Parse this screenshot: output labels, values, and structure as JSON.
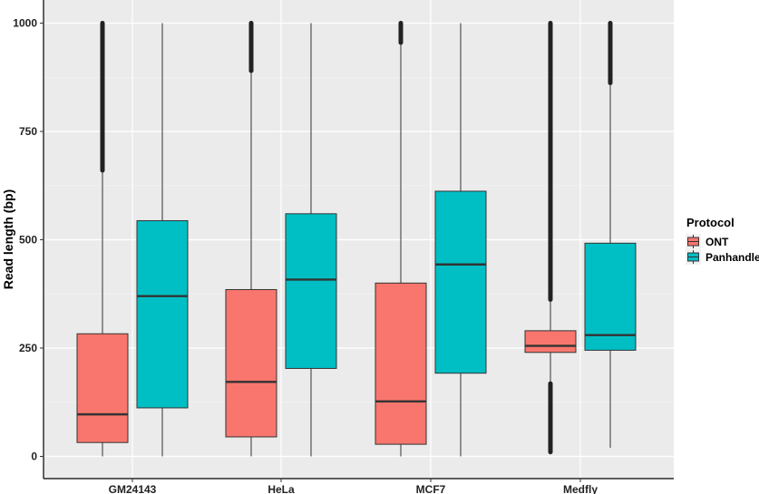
{
  "chart_data": {
    "type": "boxplot",
    "ylabel": "Read length (bp)",
    "xlabel": "",
    "ylim": [
      -40,
      1010
    ],
    "yticks": [
      0,
      250,
      500,
      750,
      1000
    ],
    "categories": [
      "GM24143",
      "HeLa",
      "MCF7",
      "Medfly"
    ],
    "grid": true,
    "legend": {
      "title": "Protocol",
      "position": "right"
    },
    "series": [
      {
        "name": "ONT",
        "color": "#F8766D",
        "boxes": [
          {
            "category": "GM24143",
            "whisker_low": 0,
            "q1": 32,
            "median": 97,
            "q3": 283,
            "whisker_high": 660,
            "outliers_range": [
              660,
              1000
            ]
          },
          {
            "category": "HeLa",
            "whisker_low": 0,
            "q1": 45,
            "median": 172,
            "q3": 385,
            "whisker_high": 890,
            "outliers_range": [
              890,
              1000
            ]
          },
          {
            "category": "MCF7",
            "whisker_low": 0,
            "q1": 28,
            "median": 127,
            "q3": 400,
            "whisker_high": 955,
            "outliers_range": [
              955,
              1000
            ]
          },
          {
            "category": "Medfly",
            "whisker_low": 168,
            "q1": 240,
            "median": 255,
            "q3": 290,
            "whisker_high": 362,
            "outliers_range": [
              362,
              1000
            ],
            "outliers_low_range": [
              10,
              168
            ]
          }
        ]
      },
      {
        "name": "Panhandle",
        "color": "#00BFC4",
        "boxes": [
          {
            "category": "GM24143",
            "whisker_low": 0,
            "q1": 112,
            "median": 370,
            "q3": 544,
            "whisker_high": 1000
          },
          {
            "category": "HeLa",
            "whisker_low": 0,
            "q1": 203,
            "median": 408,
            "q3": 560,
            "whisker_high": 1000
          },
          {
            "category": "MCF7",
            "whisker_low": 0,
            "q1": 192,
            "median": 443,
            "q3": 612,
            "whisker_high": 1000
          },
          {
            "category": "Medfly",
            "whisker_low": 20,
            "q1": 245,
            "median": 280,
            "q3": 492,
            "whisker_high": 862,
            "outliers_range": [
              862,
              1000
            ]
          }
        ]
      }
    ]
  }
}
